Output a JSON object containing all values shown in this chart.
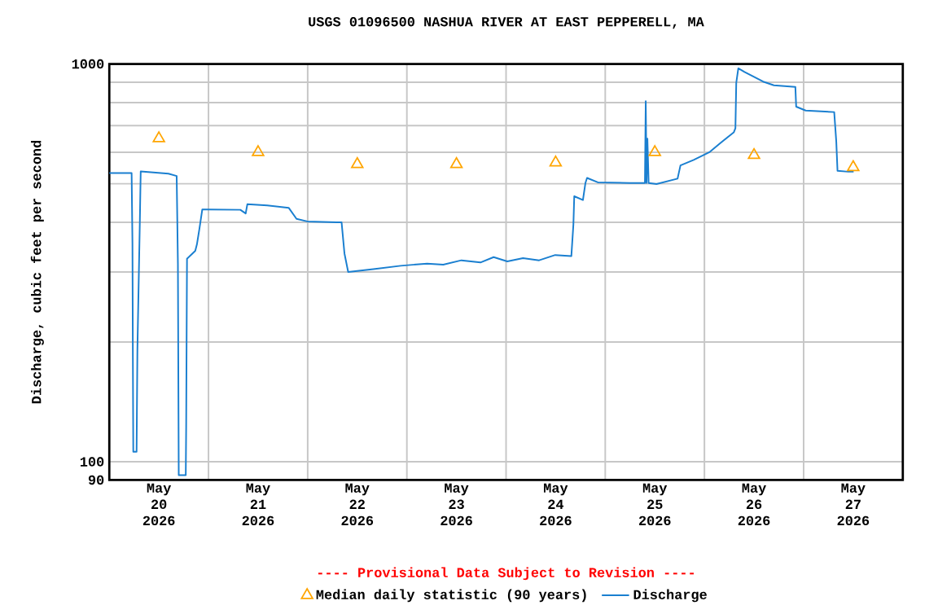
{
  "chart_data": {
    "type": "line",
    "title": "USGS 01096500 NASHUA RIVER AT EAST PEPPERELL, MA",
    "ylabel": "Discharge, cubic feet per second",
    "annotations": [
      "---- Provisional Data Subject to Revision ----"
    ],
    "xlim": [
      "2026-05-20",
      "2026-05-28"
    ],
    "xticks": [
      {
        "value": "2026-05-21",
        "label": null
      },
      {
        "value": "2026-05-22",
        "label": null
      },
      {
        "value": "2026-05-23",
        "label": null
      },
      {
        "value": "2026-05-24",
        "label": null
      },
      {
        "value": "2026-05-25",
        "label": null
      },
      {
        "value": "2026-05-26",
        "label": null
      },
      {
        "value": "2026-05-27",
        "label": null
      },
      {
        "value": "2026-05-20T12:00",
        "label": "May 20 2026"
      },
      {
        "value": "2026-05-21T12:00",
        "label": "May 21 2026"
      },
      {
        "value": "2026-05-22T12:00",
        "label": "May 22 2026"
      },
      {
        "value": "2026-05-23T12:00",
        "label": "May 23 2026"
      },
      {
        "value": "2026-05-24T12:00",
        "label": "May 24 2026"
      },
      {
        "value": "2026-05-25T12:00",
        "label": "May 25 2026"
      },
      {
        "value": "2026-05-26T12:00",
        "label": "May 26 2026"
      },
      {
        "value": "2026-05-27T12:00",
        "label": "May 27 2026"
      }
    ],
    "ylim": [
      90,
      1000
    ],
    "yticks": [
      90,
      100,
      {
        "value": 200,
        "label": null
      },
      {
        "value": 300,
        "label": null
      },
      {
        "value": 400,
        "label": null
      },
      {
        "value": 500,
        "label": null
      },
      {
        "value": 600,
        "label": null
      },
      {
        "value": 700,
        "label": null
      },
      {
        "value": 800,
        "label": null
      },
      {
        "value": 900,
        "label": null
      },
      1000
    ],
    "log": true,
    "grid": true,
    "legend": "bottom",
    "series": [
      {
        "name": "Median daily statistic (90 years)",
        "type": "scatter",
        "marker": "triangle",
        "color": "#ffa500",
        "x": [
          "2026-05-20T12:00",
          "2026-05-21T12:00",
          "2026-05-22T12:00",
          "2026-05-23T12:00",
          "2026-05-24T12:00",
          "2026-05-25T12:00",
          "2026-05-26T12:00",
          "2026-05-27T12:00"
        ],
        "values": [
          650,
          600,
          560,
          560,
          565,
          600,
          590,
          550
        ]
      },
      {
        "name": "Discharge",
        "marker": "none",
        "color": "#1a7fd0",
        "x": [
          "2026-05-20T00:00",
          "2026-05-20T05:24",
          "2026-05-20T05:36",
          "2026-05-20T05:42",
          "2026-05-20T05:48",
          "2026-05-20T06:36",
          "2026-05-20T06:48",
          "2026-05-20T07:24",
          "2026-05-20T07:36",
          "2026-05-20T14:18",
          "2026-05-20T16:18",
          "2026-05-20T16:36",
          "2026-05-20T16:48",
          "2026-05-20T18:30",
          "2026-05-20T18:36",
          "2026-05-20T18:48",
          "2026-05-20T20:48",
          "2026-05-20T21:12",
          "2026-05-20T21:48",
          "2026-05-20T22:30",
          "2026-05-21T07:42",
          "2026-05-21T09:00",
          "2026-05-21T09:24",
          "2026-05-21T14:12",
          "2026-05-21T19:24",
          "2026-05-21T21:18",
          "2026-05-21T23:54",
          "2026-05-22T07:00",
          "2026-05-22T08:12",
          "2026-05-22T08:54",
          "2026-05-22T09:48",
          "2026-05-22T15:54",
          "2026-05-22T22:30",
          "2026-05-23T04:54",
          "2026-05-23T08:48",
          "2026-05-23T13:12",
          "2026-05-23T17:48",
          "2026-05-23T21:00",
          "2026-05-24T00:18",
          "2026-05-24T04:06",
          "2026-05-24T08:00",
          "2026-05-24T11:54",
          "2026-05-24T15:48",
          "2026-05-24T16:18",
          "2026-05-24T16:30",
          "2026-05-24T18:36",
          "2026-05-24T19:12",
          "2026-05-24T19:36",
          "2026-05-24T22:12",
          "2026-05-25T05:54",
          "2026-05-25T09:36",
          "2026-05-25T09:48",
          "2026-05-25T10:00",
          "2026-05-25T10:12",
          "2026-05-25T10:30",
          "2026-05-25T12:24",
          "2026-05-25T17:30",
          "2026-05-25T18:12",
          "2026-05-25T21:24",
          "2026-05-26T01:18",
          "2026-05-26T03:54",
          "2026-05-26T07:06",
          "2026-05-26T07:30",
          "2026-05-26T07:42",
          "2026-05-26T08:12",
          "2026-05-26T09:42",
          "2026-05-26T14:12",
          "2026-05-26T16:48",
          "2026-05-26T22:00",
          "2026-05-26T22:12",
          "2026-05-27T00:30",
          "2026-05-27T07:24",
          "2026-05-27T07:54",
          "2026-05-27T08:12",
          "2026-05-27T10:48",
          "2026-05-27T12:06"
        ],
        "values": [
          532,
          532,
          354,
          184,
          106,
          106,
          192,
          407,
          537,
          530,
          523,
          314,
          92.5,
          92.5,
          123,
          324,
          339,
          352,
          385,
          431,
          430,
          421,
          444,
          441,
          435,
          408,
          402,
          400,
          400,
          334,
          300,
          305,
          311,
          315,
          313,
          321,
          317,
          327,
          319,
          325,
          321,
          331,
          329,
          396,
          465,
          455,
          502,
          517,
          504,
          502,
          502,
          806,
          502,
          649,
          502,
          499,
          515,
          556,
          574,
          601,
          633,
          673,
          690,
          897,
          975,
          955,
          903,
          884,
          876,
          781,
          764,
          757,
          639,
          539,
          536,
          536
        ]
      }
    ]
  }
}
